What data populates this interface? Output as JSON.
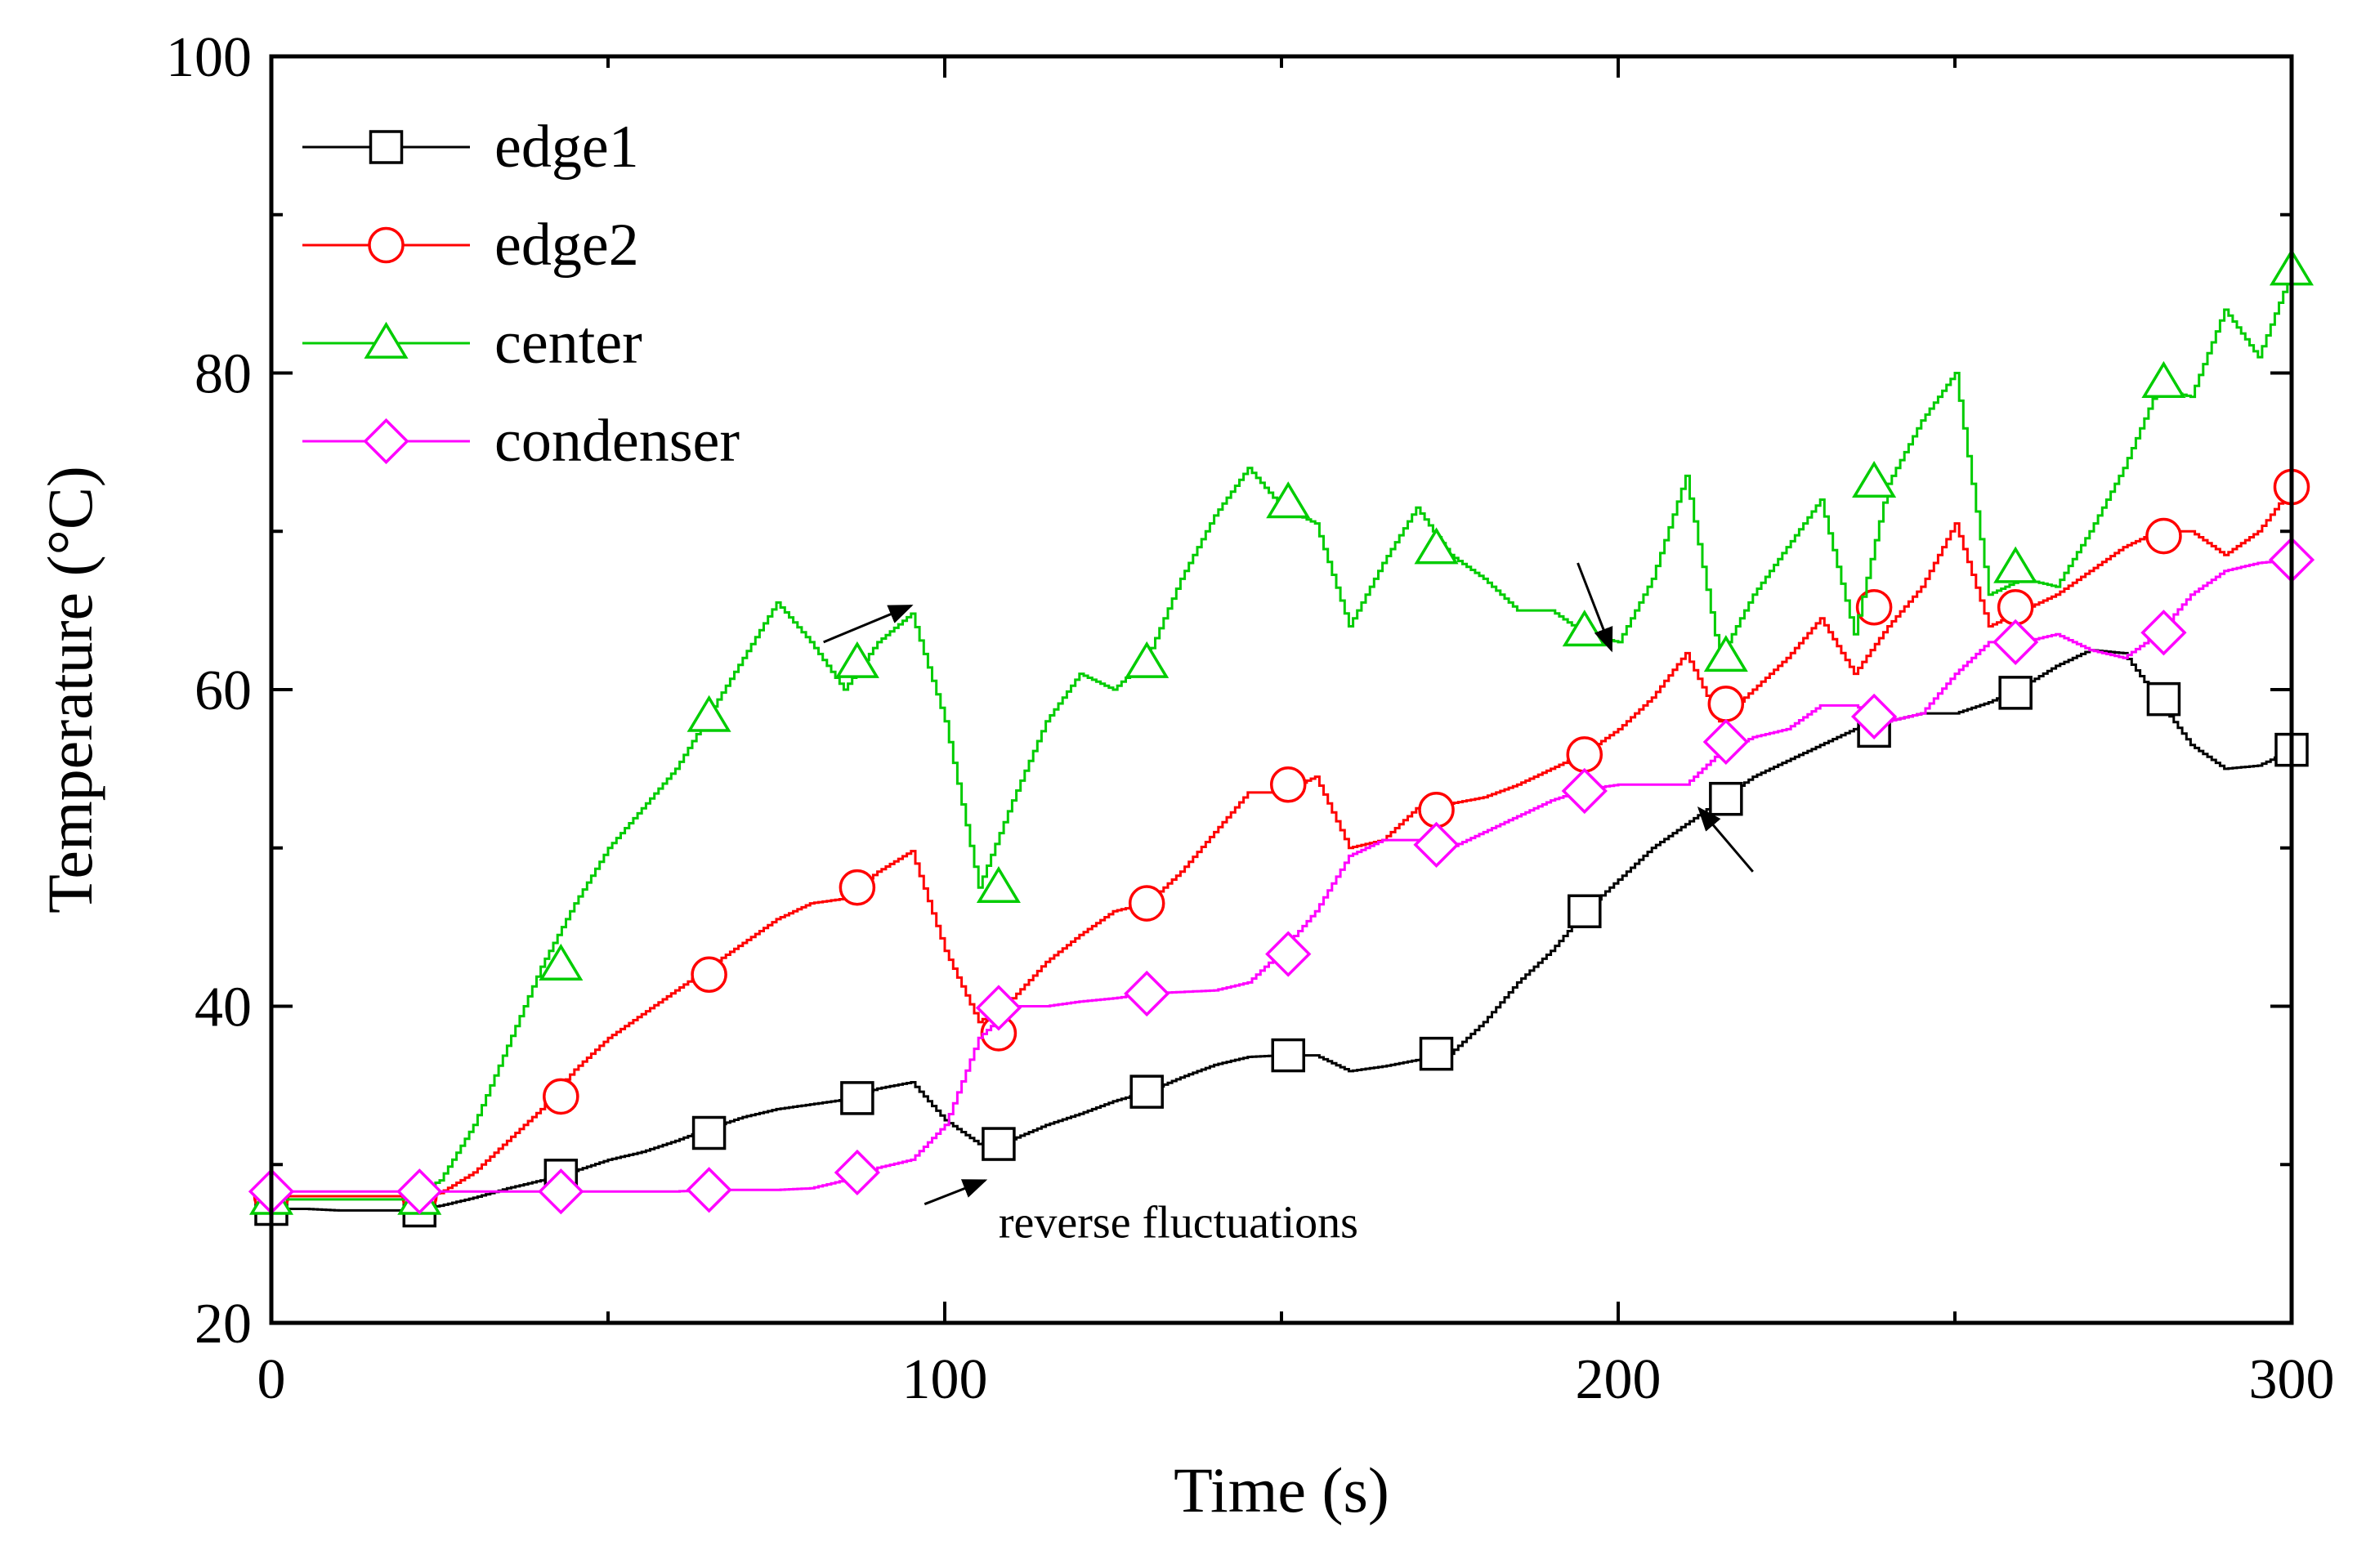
{
  "chart_data": {
    "type": "line",
    "title": "",
    "xlabel": "Time (s)",
    "ylabel": "Temperature (°C)",
    "xlim": [
      0,
      300
    ],
    "ylim": [
      20,
      100
    ],
    "xticks": [
      0,
      100,
      200,
      300
    ],
    "yticks": [
      20,
      40,
      60,
      80,
      100
    ],
    "grid": false,
    "legend_position": "top-left",
    "series": [
      {
        "name": "edge1",
        "color": "#000000",
        "marker": "square",
        "x": [
          0,
          5,
          10,
          15,
          20,
          25,
          30,
          35,
          40,
          45,
          50,
          55,
          60,
          65,
          70,
          75,
          80,
          85,
          90,
          95,
          100,
          105,
          110,
          115,
          120,
          125,
          130,
          135,
          140,
          145,
          150,
          155,
          160,
          165,
          170,
          175,
          180,
          185,
          190,
          195,
          200,
          205,
          210,
          215,
          220,
          225,
          230,
          235,
          240,
          245,
          250,
          255,
          260,
          265,
          270,
          275,
          280,
          285,
          290,
          295,
          300
        ],
        "y": [
          27.2,
          27.2,
          27.1,
          27.1,
          27.1,
          27.4,
          27.9,
          28.5,
          29.0,
          29.6,
          30.3,
          30.8,
          31.5,
          32.3,
          33.0,
          33.5,
          33.8,
          34.1,
          34.8,
          35.2,
          32.8,
          31.3,
          31.6,
          32.5,
          33.2,
          34.0,
          34.6,
          35.5,
          36.3,
          36.8,
          36.9,
          36.9,
          35.9,
          36.2,
          36.6,
          37.0,
          39.0,
          41.5,
          43.5,
          46.0,
          48.0,
          50.0,
          51.5,
          53.0,
          54.5,
          55.5,
          56.5,
          57.5,
          58.0,
          58.5,
          58.5,
          59.2,
          60.2,
          61.5,
          62.5,
          62.3,
          59.4,
          56.5,
          55.0,
          55.2,
          56.2
        ],
        "markers_x": [
          0,
          22,
          43,
          65,
          87,
          108,
          130,
          151,
          173,
          195,
          216,
          238,
          259,
          281,
          300
        ],
        "markers_y": [
          27.2,
          27.1,
          29.3,
          32.0,
          34.2,
          31.3,
          34.6,
          36.9,
          37.0,
          46.0,
          53.1,
          57.4,
          59.8,
          59.4,
          56.2
        ]
      },
      {
        "name": "edge2",
        "color": "#ff0000",
        "marker": "circle",
        "x": [
          0,
          5,
          10,
          15,
          20,
          25,
          30,
          35,
          40,
          45,
          50,
          55,
          60,
          65,
          70,
          75,
          80,
          85,
          90,
          95,
          100,
          105,
          110,
          115,
          120,
          125,
          130,
          135,
          140,
          145,
          150,
          155,
          160,
          165,
          170,
          175,
          180,
          185,
          190,
          195,
          200,
          205,
          210,
          215,
          220,
          225,
          230,
          235,
          240,
          245,
          250,
          255,
          260,
          265,
          270,
          275,
          280,
          285,
          290,
          295,
          300
        ],
        "y": [
          28.0,
          28.0,
          28.0,
          28.0,
          28.0,
          28.2,
          29.5,
          31.5,
          33.5,
          36.0,
          38.0,
          39.5,
          41.0,
          42.5,
          44.0,
          45.5,
          46.5,
          46.8,
          48.5,
          49.8,
          43.5,
          39.0,
          40.5,
          42.8,
          44.5,
          46.0,
          46.5,
          48.5,
          51.0,
          53.5,
          53.5,
          54.5,
          50.0,
          50.5,
          52.5,
          52.8,
          53.2,
          54.0,
          55.0,
          56.0,
          57.5,
          59.5,
          62.3,
          58.0,
          60.0,
          62.0,
          64.5,
          61.0,
          64.0,
          66.5,
          70.5,
          64.0,
          65.0,
          66.0,
          67.5,
          69.0,
          70.0,
          70.0,
          68.5,
          70.0,
          72.8
        ],
        "markers_x": [
          0,
          22,
          43,
          65,
          87,
          108,
          130,
          151,
          173,
          195,
          216,
          238,
          259,
          281,
          300
        ],
        "markers_y": [
          28.0,
          28.0,
          34.3,
          42.0,
          47.5,
          38.3,
          46.5,
          54.0,
          52.4,
          55.9,
          59.1,
          65.2,
          65.2,
          69.7,
          72.8
        ]
      },
      {
        "name": "center",
        "color": "#00cc00",
        "marker": "triangle",
        "x": [
          0,
          5,
          10,
          15,
          20,
          25,
          30,
          35,
          40,
          45,
          50,
          55,
          60,
          65,
          70,
          75,
          80,
          85,
          90,
          95,
          100,
          105,
          110,
          115,
          120,
          125,
          130,
          135,
          140,
          145,
          150,
          155,
          160,
          165,
          170,
          175,
          180,
          185,
          190,
          195,
          200,
          205,
          210,
          215,
          220,
          225,
          230,
          235,
          240,
          245,
          250,
          255,
          260,
          265,
          270,
          275,
          280,
          285,
          290,
          295,
          300
        ],
        "y": [
          27.8,
          27.8,
          27.8,
          27.8,
          27.8,
          29.0,
          32.5,
          37.5,
          42.5,
          46.5,
          50.0,
          52.5,
          55.0,
          58.5,
          62.0,
          65.5,
          63.0,
          60.0,
          63.0,
          64.8,
          58.0,
          47.5,
          53.0,
          58.0,
          61.0,
          60.0,
          62.0,
          67.0,
          71.0,
          74.0,
          71.5,
          70.5,
          64.0,
          68.0,
          71.5,
          68.5,
          67.0,
          65.0,
          65.0,
          63.5,
          63.0,
          67.0,
          73.5,
          62.0,
          66.0,
          69.0,
          72.0,
          63.5,
          73.0,
          77.0,
          80.0,
          66.0,
          67.0,
          66.5,
          70.0,
          74.0,
          79.0,
          78.5,
          84.0,
          81.0,
          86.5
        ],
        "markers_x": [
          0,
          22,
          43,
          65,
          87,
          108,
          130,
          151,
          173,
          195,
          216,
          238,
          259,
          281,
          300
        ],
        "markers_y": [
          27.8,
          27.8,
          42.6,
          58.3,
          61.7,
          47.5,
          61.7,
          71.8,
          68.9,
          63.7,
          62.1,
          73.1,
          67.7,
          79.4,
          86.5
        ]
      },
      {
        "name": "condenser",
        "color": "#ff00ff",
        "marker": "diamond",
        "x": [
          0,
          5,
          10,
          15,
          20,
          25,
          30,
          35,
          40,
          45,
          50,
          55,
          60,
          65,
          70,
          75,
          80,
          85,
          90,
          95,
          100,
          105,
          110,
          115,
          120,
          125,
          130,
          135,
          140,
          145,
          150,
          155,
          160,
          165,
          170,
          175,
          180,
          185,
          190,
          195,
          200,
          205,
          210,
          215,
          220,
          225,
          230,
          235,
          240,
          245,
          250,
          255,
          260,
          265,
          270,
          275,
          280,
          285,
          290,
          295,
          300
        ],
        "y": [
          28.3,
          28.3,
          28.3,
          28.3,
          28.3,
          28.3,
          28.3,
          28.3,
          28.3,
          28.3,
          28.3,
          28.3,
          28.3,
          28.4,
          28.4,
          28.4,
          28.5,
          29.0,
          29.8,
          30.3,
          32.5,
          38.0,
          40.0,
          40.0,
          40.3,
          40.5,
          40.8,
          40.9,
          41.0,
          41.5,
          43.5,
          46.0,
          49.5,
          50.5,
          50.5,
          50.0,
          51.0,
          52.0,
          53.0,
          53.7,
          54.0,
          54.0,
          54.0,
          56.0,
          57.0,
          57.5,
          59.0,
          59.0,
          58.0,
          58.5,
          61.0,
          63.0,
          63.0,
          63.5,
          62.5,
          62.0,
          63.5,
          66.0,
          67.5,
          68.0,
          68.2
        ],
        "markers_x": [
          0,
          22,
          43,
          65,
          87,
          108,
          130,
          151,
          173,
          195,
          216,
          238,
          259,
          281,
          300
        ],
        "markers_y": [
          28.3,
          28.3,
          28.3,
          28.4,
          29.5,
          39.9,
          40.8,
          43.3,
          50.2,
          53.6,
          56.7,
          58.3,
          63.0,
          63.6,
          68.2
        ]
      }
    ],
    "annotations": [
      {
        "text": "reverse fluctuations",
        "x": 108,
        "y": 25.4
      }
    ],
    "arrows": [
      {
        "from": [
          82,
          63.0
        ],
        "to": [
          95,
          65.3
        ]
      },
      {
        "from": [
          97,
          27.5
        ],
        "to": [
          106,
          29.0
        ]
      },
      {
        "from": [
          194,
          68.0
        ],
        "to": [
          199,
          62.5
        ]
      },
      {
        "from": [
          220,
          48.5
        ],
        "to": [
          212,
          52.5
        ]
      }
    ]
  }
}
